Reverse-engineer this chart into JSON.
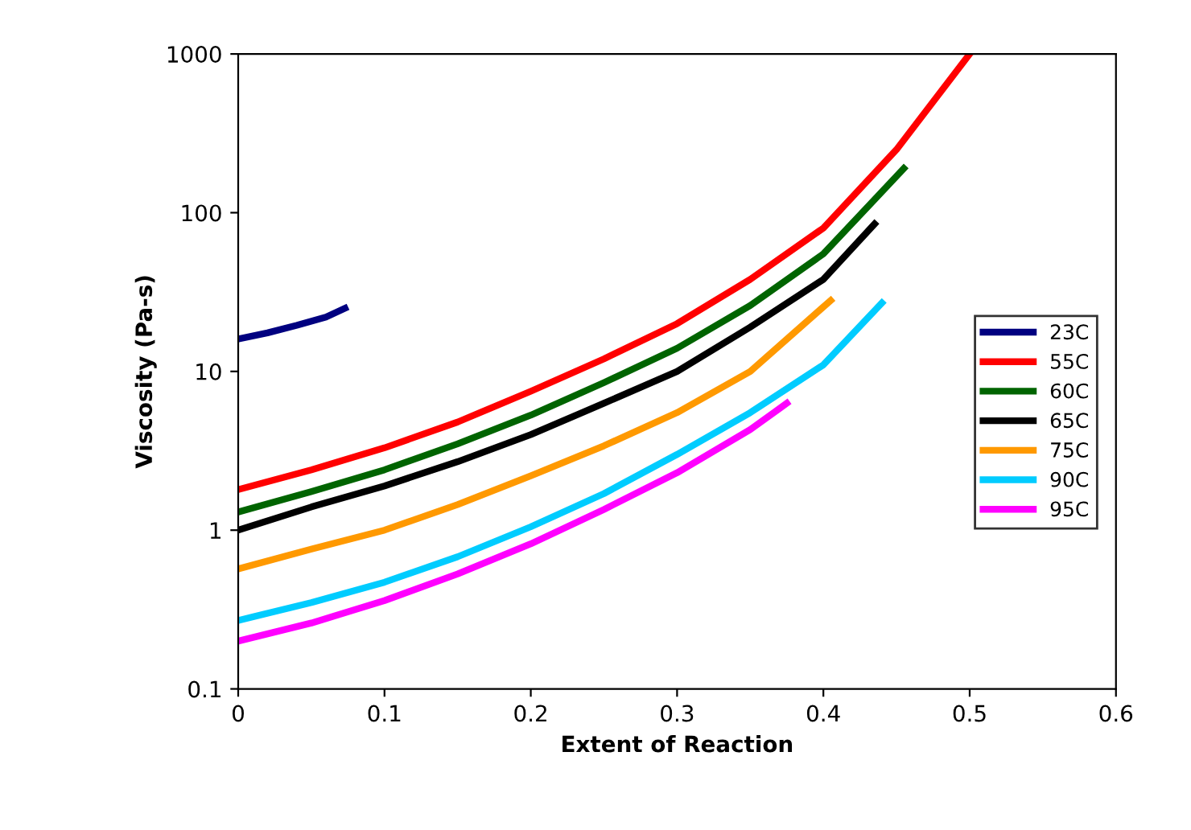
{
  "chart_data": {
    "type": "line",
    "xlabel": "Extent of Reaction",
    "ylabel": "Viscosity (Pa-s)",
    "log": "y",
    "xlim": [
      0,
      0.6
    ],
    "xticks": [
      0,
      0.1,
      0.2,
      0.3,
      0.4,
      0.5,
      0.6
    ],
    "ylim": [
      0.1,
      1000
    ],
    "yticks": [
      0.1,
      1,
      10,
      100,
      1000
    ],
    "grid": false,
    "legend": "right",
    "marker": "none",
    "line_style": "solid",
    "series": [
      {
        "name": "23C",
        "color": "#000080",
        "x": [
          0,
          0.02,
          0.04,
          0.06,
          0.073
        ],
        "values": [
          16,
          17.5,
          19.5,
          22,
          25
        ]
      },
      {
        "name": "55C",
        "color": "#ff0000",
        "x": [
          0,
          0.05,
          0.1,
          0.15,
          0.2,
          0.25,
          0.3,
          0.35,
          0.4,
          0.45,
          0.5
        ],
        "values": [
          1.8,
          2.4,
          3.3,
          4.8,
          7.5,
          12,
          20,
          38,
          80,
          250,
          1000
        ]
      },
      {
        "name": "60C",
        "color": "#006400",
        "x": [
          0,
          0.05,
          0.1,
          0.15,
          0.2,
          0.25,
          0.3,
          0.35,
          0.4,
          0.455
        ],
        "values": [
          1.3,
          1.75,
          2.4,
          3.5,
          5.3,
          8.5,
          14,
          26,
          55,
          190
        ]
      },
      {
        "name": "65C",
        "color": "#000000",
        "x": [
          0,
          0.05,
          0.1,
          0.15,
          0.2,
          0.25,
          0.3,
          0.35,
          0.4,
          0.435
        ],
        "values": [
          1.0,
          1.4,
          1.9,
          2.7,
          4.0,
          6.3,
          10,
          19,
          38,
          85
        ]
      },
      {
        "name": "75C",
        "color": "#ff9900",
        "x": [
          0,
          0.05,
          0.1,
          0.15,
          0.2,
          0.25,
          0.3,
          0.35,
          0.405
        ],
        "values": [
          0.57,
          0.76,
          1.0,
          1.45,
          2.2,
          3.4,
          5.5,
          10,
          28
        ]
      },
      {
        "name": "90C",
        "color": "#00ccff",
        "x": [
          0,
          0.05,
          0.1,
          0.15,
          0.2,
          0.25,
          0.3,
          0.35,
          0.4,
          0.44
        ],
        "values": [
          0.27,
          0.35,
          0.47,
          0.68,
          1.05,
          1.7,
          3.0,
          5.5,
          11,
          27
        ]
      },
      {
        "name": "95C",
        "color": "#ff00ff",
        "x": [
          0,
          0.05,
          0.1,
          0.15,
          0.2,
          0.25,
          0.3,
          0.35,
          0.375
        ],
        "values": [
          0.2,
          0.26,
          0.36,
          0.53,
          0.82,
          1.35,
          2.3,
          4.3,
          6.3
        ]
      }
    ]
  }
}
